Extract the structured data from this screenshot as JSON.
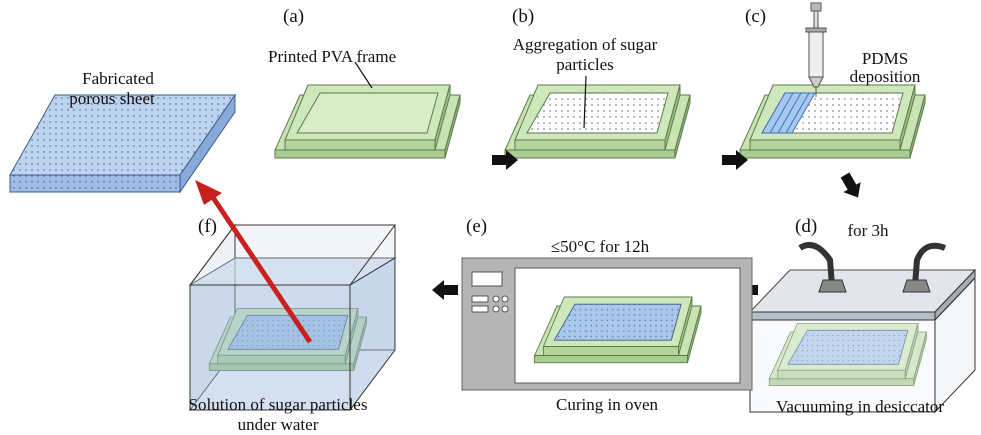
{
  "panels": [
    {
      "label": "(a)",
      "caption": [
        "Printed PVA frame"
      ]
    },
    {
      "label": "(b)",
      "caption": [
        "Aggregation of sugar",
        "particles"
      ]
    },
    {
      "label": "(c)",
      "caption": [
        "PDMS",
        "deposition"
      ]
    },
    {
      "label": "(d)",
      "caption": [
        "for 3h"
      ],
      "footer": [
        "Vacuuming in desiccator"
      ]
    },
    {
      "label": "(e)",
      "caption": [
        "≤50°C for 12h"
      ],
      "footer": [
        "Curing in oven"
      ]
    },
    {
      "label": "(f)",
      "footer": [
        "Solution of sugar particles",
        "under water"
      ]
    }
  ],
  "result": {
    "caption": [
      "Fabricated",
      "porous sheet"
    ]
  }
}
